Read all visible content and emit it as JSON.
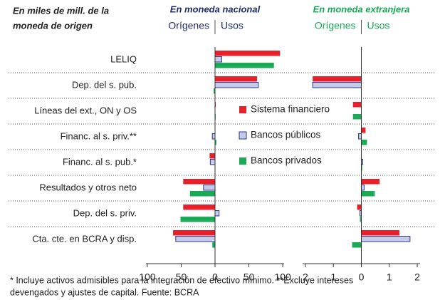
{
  "unit_note": [
    "En miles de mill. de la",
    "moneda de origen"
  ],
  "footnote": [
    "* Incluye activos admisibles para la integración de efectivo mínimo. **Excluye intereses",
    "devengados y ajustes de capital. Fuente: BCRA"
  ],
  "chart_data": [
    {
      "type": "bar",
      "orientation": "horizontal",
      "title": "En moneda nacional",
      "title_color": "#1f2d6b",
      "origin_label": "Orígenes",
      "uses_label": "Usos",
      "categories": [
        "LELIQ",
        "Dep. del s. pub.",
        "Líneas del ext., ON y OS",
        "Financ. al s. priv.**",
        "Financ. al s. pub.*",
        "Resultados y otros neto",
        "Dep. del s. priv.",
        "Cta. cte. en BCRA y disp."
      ],
      "xlim": [
        -102,
        102
      ],
      "xticks": [
        {
          "value": -100,
          "label": "100"
        },
        {
          "value": -50,
          "label": "50"
        },
        0,
        50,
        100
      ],
      "legend": "center-right",
      "series": [
        {
          "name": "Sistema financiero",
          "color": "#e8202a",
          "values": [
            96,
            62,
            1,
            0,
            -8,
            -47,
            -47,
            -62
          ]
        },
        {
          "name": "Bancos públicos",
          "color": "#c5cbe8",
          "values": [
            10,
            64,
            0,
            -4,
            -7,
            -17,
            6,
            -58
          ]
        },
        {
          "name": "Bancos privados",
          "color": "#1aaa55",
          "values": [
            87,
            -2,
            1,
            2,
            0,
            -37,
            -51,
            -4
          ]
        }
      ]
    },
    {
      "type": "bar",
      "orientation": "horizontal",
      "title": "En moneda extranjera",
      "title_color": "#1aaa55",
      "origin_label": "Orígenes",
      "uses_label": "Usos",
      "xlim": [
        -2.1,
        2.1
      ],
      "xticks": [
        {
          "value": -2,
          "label": "2"
        },
        {
          "value": -1,
          "label": "1"
        },
        0,
        1,
        2
      ],
      "series": [
        {
          "color": "#e8202a",
          "values": [
            0,
            -1.74,
            -0.3,
            0.15,
            0,
            0.65,
            -0.15,
            1.36
          ]
        },
        {
          "color": "#c5cbe8",
          "values": [
            0,
            -1.74,
            0,
            -0.1,
            0.05,
            0.1,
            -0.05,
            1.74
          ]
        },
        {
          "color": "#1aaa55",
          "values": [
            0,
            0,
            -0.3,
            0.2,
            0.03,
            0.48,
            -0.05,
            -0.33
          ]
        }
      ]
    }
  ]
}
